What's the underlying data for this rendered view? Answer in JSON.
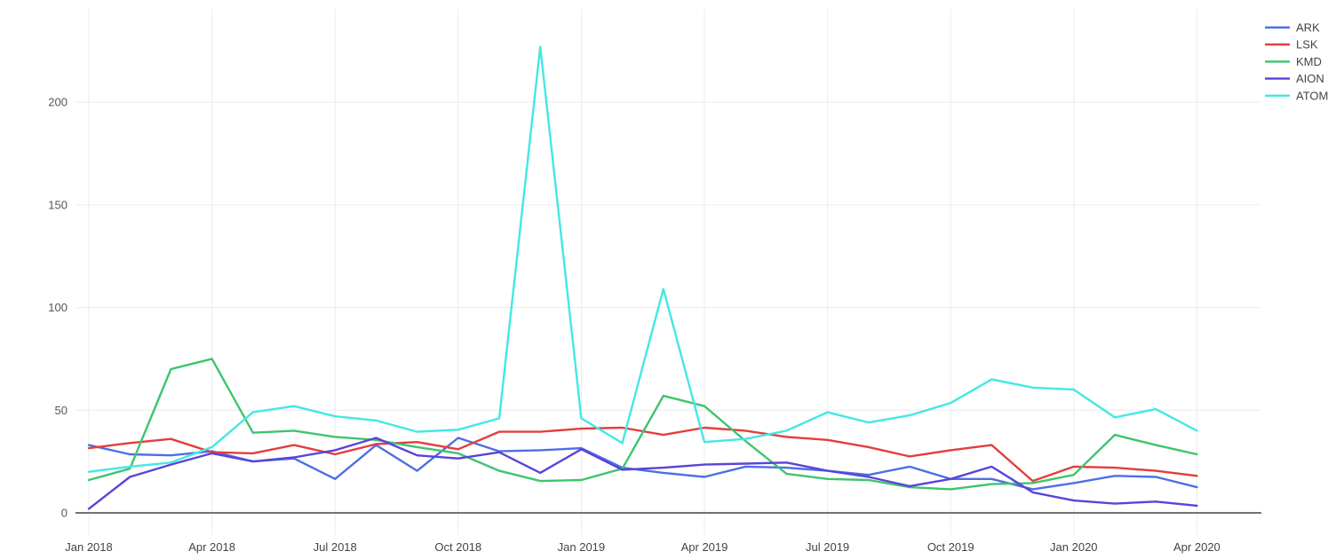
{
  "chart": {
    "background": "#ffffff",
    "grid_color": "#ececec",
    "zero_line_color": "#444444",
    "tick_label_color": "#555555",
    "legend_label_color": "#444444"
  },
  "chart_data": {
    "type": "line",
    "title": "",
    "xlabel": "",
    "ylabel": "",
    "categories": [
      "Jan 2018",
      "Feb 2018",
      "Mar 2018",
      "Apr 2018",
      "May 2018",
      "Jun 2018",
      "Jul 2018",
      "Aug 2018",
      "Sep 2018",
      "Oct 2018",
      "Nov 2018",
      "Dec 2018",
      "Jan 2019",
      "Feb 2019",
      "Mar 2019",
      "Apr 2019",
      "May 2019",
      "Jun 2019",
      "Jul 2019",
      "Aug 2019",
      "Sep 2019",
      "Oct 2019",
      "Nov 2019",
      "Dec 2019",
      "Jan 2020",
      "Feb 2020",
      "Mar 2020",
      "Apr 2020"
    ],
    "x_tick_labels": [
      "Jan 2018",
      "Apr 2018",
      "Jul 2018",
      "Oct 2018",
      "Jan 2019",
      "Apr 2019",
      "Jul 2019",
      "Oct 2019",
      "Jan 2020",
      "Apr 2020"
    ],
    "x_tick_every": 3,
    "yticks": [
      0,
      50,
      100,
      150,
      200
    ],
    "ylim": [
      0,
      243
    ],
    "grid": true,
    "legend_position": "top-right",
    "series": [
      {
        "name": "ARK",
        "color": "#4d6fe3",
        "values": [
          33,
          28.5,
          28,
          30,
          25,
          26.5,
          16.5,
          33,
          20.5,
          36.5,
          30,
          30.5,
          31.5,
          22,
          19.5,
          17.5,
          22.5,
          22,
          20.5,
          18.5,
          22.5,
          16.5,
          16.5,
          11.5,
          14.5,
          18,
          17.5,
          12.5
        ]
      },
      {
        "name": "LSK",
        "color": "#e23e3c",
        "values": [
          31.5,
          34,
          36,
          29.5,
          29,
          33,
          28.5,
          33.5,
          34.5,
          31,
          39.5,
          39.5,
          41,
          41.5,
          38,
          41.5,
          40,
          37,
          35.5,
          32,
          27.5,
          30.5,
          33,
          15.5,
          22.5,
          22,
          20.5,
          18
        ]
      },
      {
        "name": "KMD",
        "color": "#3ec46d",
        "values": [
          16,
          21.5,
          70,
          75,
          39,
          40,
          37,
          35.5,
          32,
          29,
          20.5,
          15.5,
          16,
          21.5,
          57,
          52,
          35,
          19,
          16.5,
          16,
          12.5,
          11.5,
          14,
          14.5,
          18.5,
          38,
          33,
          28.5
        ]
      },
      {
        "name": "AION",
        "color": "#5a43da",
        "values": [
          2,
          17.5,
          23.5,
          29,
          25,
          27,
          30.5,
          36.5,
          28,
          26.5,
          29.5,
          19.5,
          31,
          21,
          22,
          23.5,
          24,
          24.5,
          20.5,
          17.5,
          13,
          16.5,
          22.5,
          10,
          6,
          4.5,
          5.5,
          3.5
        ]
      },
      {
        "name": "ATOM",
        "color": "#43e8e4",
        "values": [
          20,
          22.5,
          24.5,
          32,
          49,
          52,
          47,
          45,
          39.5,
          40.5,
          46,
          227,
          46,
          34,
          109,
          34.5,
          36,
          40,
          49,
          44,
          47.5,
          53.5,
          65,
          61,
          60,
          46.5,
          50.5,
          40
        ]
      }
    ]
  }
}
